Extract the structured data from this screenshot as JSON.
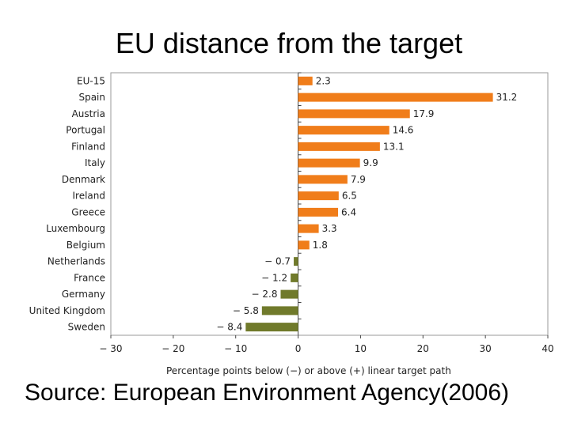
{
  "slide": {
    "title": "EU distance from the target",
    "source": "Source: European Environment Agency(2006)"
  },
  "chart_data": {
    "type": "bar",
    "orientation": "horizontal",
    "categories": [
      "EU-15",
      "Spain",
      "Austria",
      "Portugal",
      "Finland",
      "Italy",
      "Denmark",
      "Ireland",
      "Greece",
      "Luxembourg",
      "Belgium",
      "Netherlands",
      "France",
      "Germany",
      "United Kingdom",
      "Sweden"
    ],
    "values": [
      2.3,
      31.2,
      17.9,
      14.6,
      13.1,
      9.9,
      7.9,
      6.5,
      6.4,
      3.3,
      1.8,
      -0.7,
      -1.2,
      -2.8,
      -5.8,
      -8.4
    ],
    "value_labels": [
      "2.3",
      "31.2",
      "17.9",
      "14.6",
      "13.1",
      "9.9",
      "7.9",
      "6.5",
      "6.4",
      "3.3",
      "1.8",
      "− 0.7",
      "− 1.2",
      "− 2.8",
      "− 5.8",
      "− 8.4"
    ],
    "xlabel": "Percentage points below (−) or above (+) linear target path",
    "xlim": [
      -30,
      40
    ],
    "xticks": [
      -30,
      -20,
      -10,
      0,
      10,
      20,
      30,
      40
    ],
    "xtick_labels": [
      "− 30",
      "− 20",
      "− 10",
      "0",
      "10",
      "20",
      "30",
      "40"
    ],
    "colors": {
      "positive": "#f07d1a",
      "negative": "#707a2b",
      "frame": "#999999"
    },
    "grid": false,
    "legend": "none"
  }
}
